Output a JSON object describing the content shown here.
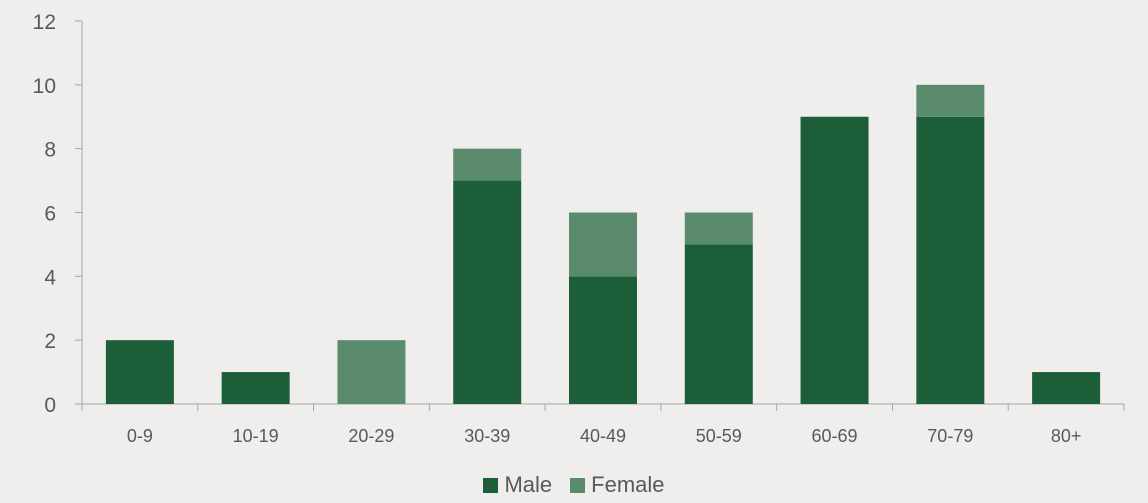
{
  "chart_data": {
    "type": "bar",
    "stacked": true,
    "categories": [
      "0-9",
      "10-19",
      "20-29",
      "30-39",
      "40-49",
      "50-59",
      "60-69",
      "70-79",
      "80+"
    ],
    "series": [
      {
        "name": "Male",
        "color": "#1b5e38",
        "values": [
          2,
          1,
          0,
          7,
          4,
          5,
          9,
          9,
          1
        ]
      },
      {
        "name": "Female",
        "color": "#5a8b6d",
        "values": [
          0,
          0,
          2,
          1,
          2,
          1,
          0,
          1,
          0
        ]
      }
    ],
    "ylim": [
      0,
      12
    ],
    "yticks": [
      "0",
      "2",
      "4",
      "6",
      "8",
      "10",
      "12"
    ],
    "grid": false,
    "legend_position": "bottom"
  }
}
